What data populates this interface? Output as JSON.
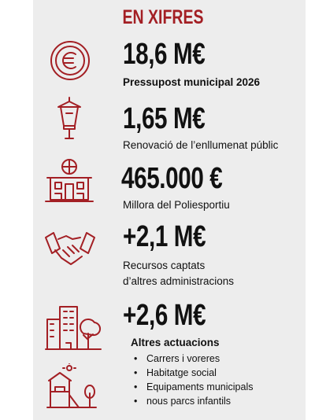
{
  "header": {
    "title": "EN XIFRES"
  },
  "items": [
    {
      "amount": "18,6 M€",
      "label": "Pressupost municipal 2026"
    },
    {
      "amount": "1,65 M€",
      "label": "Renovació de l’enllumenat públic"
    },
    {
      "amount": "465.000 €",
      "label": "Millora del Poliesportiu"
    },
    {
      "amount": "+2,1 M€",
      "label": [
        "Recursos captats",
        "d’altres administracions"
      ]
    },
    {
      "amount": "+2,6 M€",
      "label": "Altres actuacions",
      "bullets": [
        "Carrers i voreres",
        "Habitatge social",
        "Equipaments municipals",
        "nous parcs infantils"
      ]
    }
  ]
}
